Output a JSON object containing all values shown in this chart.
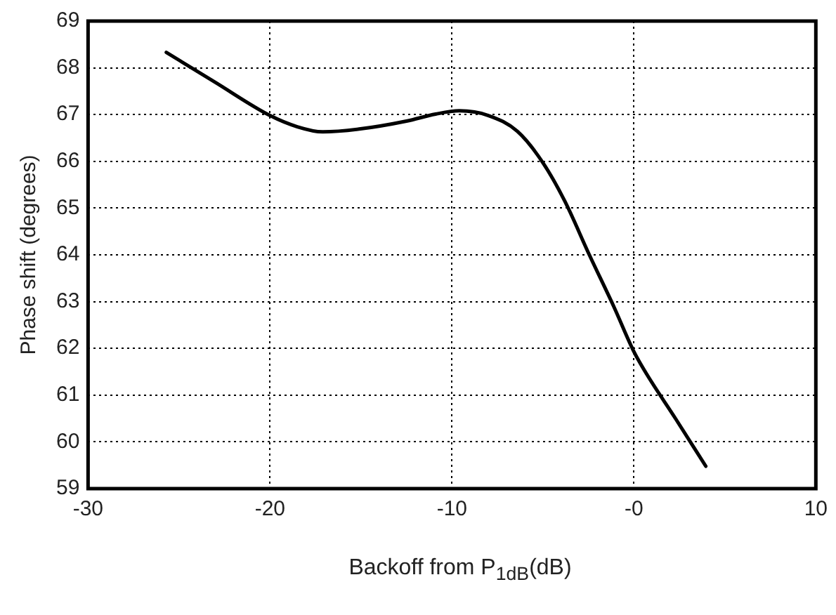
{
  "chart_data": {
    "type": "line",
    "xlabel": "Backoff from P$_{1dB}$(dB)",
    "ylabel": "Phase shift (degrees)",
    "x": [
      -25.7,
      -23.05,
      -20,
      -18.5,
      -17.1,
      -15.1,
      -12.5,
      -10.9,
      -9.6,
      -8.0,
      -6.4,
      -5.0,
      -3.8,
      -2.45,
      -1.1,
      0,
      0.7,
      2.3,
      3.95
    ],
    "series": [
      {
        "color": "#000000",
        "values": [
          68.33,
          67.7,
          66.98,
          66.74,
          66.63,
          66.69,
          66.86,
          67.01,
          67.08,
          66.98,
          66.64,
          65.97,
          65.15,
          64.0,
          62.89,
          61.93,
          61.45,
          60.49,
          59.48
        ]
      }
    ],
    "xlim": [
      -30,
      10
    ],
    "xticks": [
      -30,
      -20,
      -10,
      {
        "value": 0,
        "label": "-0"
      },
      10
    ],
    "ylim": [
      59,
      69
    ],
    "yticks": [
      59,
      60,
      61,
      62,
      63,
      64,
      65,
      66,
      67,
      68,
      69
    ],
    "grid": true,
    "marker": "none",
    "line_style": "solid"
  }
}
